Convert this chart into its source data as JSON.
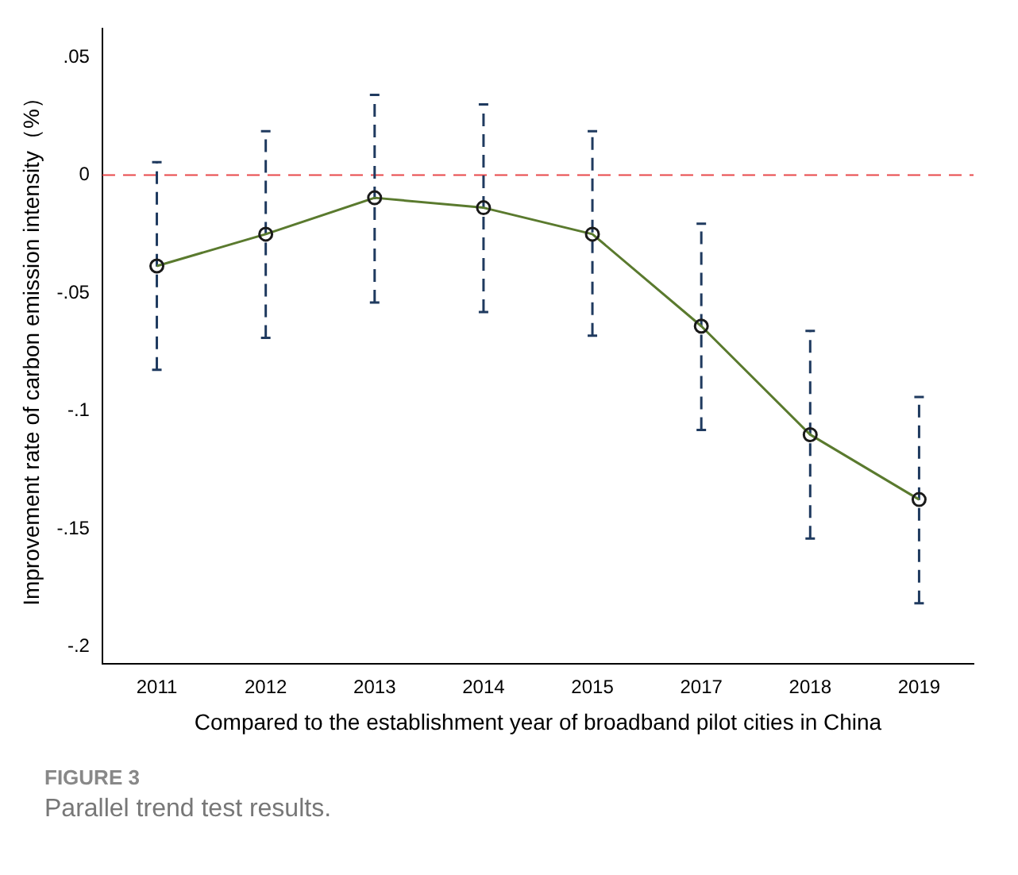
{
  "chart_data": {
    "type": "line",
    "xlabel": "Compared to the establishment year of broadband pilot cities in China",
    "ylabel": "Improvement rate of carbon emission intensity（%）",
    "categories": [
      "2011",
      "2012",
      "2013",
      "2014",
      "2015",
      "2017",
      "2018",
      "2019"
    ],
    "series": [
      {
        "color": "#5a7a2e",
        "values": [
          -0.0385,
          -0.025,
          -0.0096,
          -0.0138,
          -0.025,
          -0.064,
          -0.11,
          -0.1375
        ],
        "errors": [
          [
            -0.0825,
            0.0055
          ],
          [
            -0.069,
            0.0186
          ],
          [
            -0.054,
            0.034
          ],
          [
            -0.058,
            0.03
          ],
          [
            -0.068,
            0.0186
          ],
          [
            -0.108,
            -0.0206
          ],
          [
            -0.154,
            -0.066
          ],
          [
            -0.1815,
            -0.094
          ]
        ]
      }
    ],
    "ylim": [
      -0.207,
      0.062
    ],
    "yticks": [
      {
        "value": -0.2,
        "label": "-.2"
      },
      {
        "value": -0.15,
        "label": "-.15"
      },
      {
        "value": -0.1,
        "label": "-.1"
      },
      {
        "value": -0.05,
        "label": "-.05"
      },
      0,
      {
        "value": 0.05,
        "label": ".05"
      }
    ],
    "ref_lines": [
      {
        "axis": "y",
        "value": 0,
        "color": "#e8484a",
        "line_style": "dashed"
      }
    ],
    "marker": "circle",
    "line_style": "solid",
    "grid": false,
    "legend": false,
    "annotations": [
      "FIGURE 3",
      "Parallel trend test results."
    ]
  }
}
